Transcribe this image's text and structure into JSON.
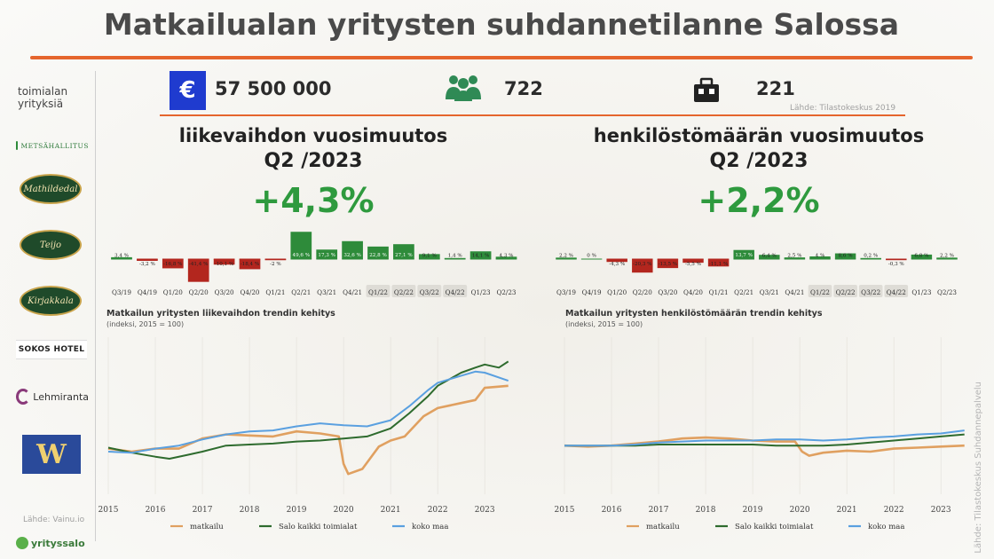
{
  "header": {
    "title": "Matkailualan yritysten suhdannetilanne Salossa"
  },
  "sidebar": {
    "label": "toimialan yrityksiä",
    "logos": [
      "METSÄHALLITUS",
      "Mathildedal",
      "Teijo",
      "Kirjakkala",
      "SOKOS HOTEL",
      "Lehmiranta",
      "W"
    ],
    "source": "Lähde: Vainu.io",
    "footer_logo": "yrityssalo"
  },
  "stats": {
    "euro_symbol": "€",
    "revenue": "57 500 000",
    "employees": "722",
    "companies": "221",
    "source": "Lähde: Tilastokeskus 2019"
  },
  "left_panel": {
    "heading": "liikevaihdon vuosimuutos",
    "period": "Q2 /2023",
    "big_value": "+4,3%",
    "trend_title": "Matkailun yritysten liikevaihdon trendin kehitys",
    "trend_subtitle": "(indeksi, 2015 = 100)"
  },
  "right_panel": {
    "heading": "henkilöstömäärän vuosimuutos",
    "period": "Q2 /2023",
    "big_value": "+2,2%",
    "trend_title": "Matkailun yritysten henkilöstömäärän trendin kehitys",
    "trend_subtitle": "(indeksi, 2015 = 100)"
  },
  "vertical_source": "Lähde: Tilastokeskus Suhdannepalvelu",
  "colors": {
    "accent": "#e5652d",
    "positive": "#2e8b3a",
    "negative": "#b3261e",
    "matkailu": "#e0a060",
    "salo": "#2e6b2e",
    "koko_maa": "#5aa0e0"
  },
  "chart_data": [
    {
      "type": "bar",
      "title": "liikevaihdon vuosimuutos",
      "categories": [
        "Q3/19",
        "Q4/19",
        "Q1/20",
        "Q2/20",
        "Q3/20",
        "Q4/20",
        "Q1/21",
        "Q2/21",
        "Q3/21",
        "Q4/21",
        "Q1/22",
        "Q2/22",
        "Q3/22",
        "Q4/22",
        "Q1/23",
        "Q2/23"
      ],
      "values": [
        3.4,
        -3.2,
        -16.8,
        -41.4,
        -10.1,
        -18.4,
        -2.0,
        49.6,
        17.3,
        32.6,
        22.8,
        27.1,
        9.1,
        1.4,
        14.1,
        4.3
      ],
      "labels": [
        "3,4 %",
        "-3,2 %",
        "-16,8 %",
        "-41,4 %",
        "-10,1 %",
        "-18,4 %",
        "-2 %",
        "49,6 %",
        "17,3 %",
        "32,6 %",
        "22,8 %",
        "27,1 %",
        "9,1 %",
        "1,4 %",
        "14,1 %",
        "4,3 %"
      ]
    },
    {
      "type": "bar",
      "title": "henkilöstömäärän vuosimuutos",
      "categories": [
        "Q3/19",
        "Q4/19",
        "Q1/20",
        "Q2/20",
        "Q3/20",
        "Q4/20",
        "Q1/21",
        "Q2/21",
        "Q3/21",
        "Q4/21",
        "Q1/22",
        "Q2/22",
        "Q3/22",
        "Q4/22",
        "Q1/23",
        "Q2/23"
      ],
      "values": [
        2.2,
        0,
        -4.3,
        -20.3,
        -13.5,
        -5.5,
        -11.1,
        13.7,
        6.4,
        2.5,
        4.0,
        8.6,
        0.2,
        -0.3,
        6.8,
        2.2
      ],
      "labels": [
        "2,2 %",
        "0 %",
        "-4,3 %",
        "-20,3 %",
        "-13,5 %",
        "-5,5 %",
        "-11,1 %",
        "13,7 %",
        "6,4 %",
        "2,5 %",
        "4 %",
        "8,6 %",
        "0,2 %",
        "-0,3 %",
        "6,8 %",
        "2,2 %"
      ]
    },
    {
      "type": "line",
      "title": "Matkailun yritysten liikevaihdon trendin kehitys",
      "subtitle": "(indeksi, 2015 = 100)",
      "x_ticks": [
        "2015",
        "2016",
        "2017",
        "2018",
        "2019",
        "2020",
        "2021",
        "2022",
        "2023"
      ],
      "xlim": [
        2015,
        2023.6
      ],
      "ylim": [
        55,
        210
      ],
      "series": [
        {
          "name": "matkailu",
          "points": [
            [
              2015,
              100
            ],
            [
              2015.5,
              97
            ],
            [
              2016,
              100
            ],
            [
              2016.5,
              100
            ],
            [
              2017,
              110
            ],
            [
              2017.5,
              114
            ],
            [
              2018,
              113
            ],
            [
              2018.5,
              112
            ],
            [
              2019,
              117
            ],
            [
              2019.5,
              115
            ],
            [
              2019.9,
              112
            ],
            [
              2020.0,
              85
            ],
            [
              2020.1,
              75
            ],
            [
              2020.4,
              80
            ],
            [
              2020.75,
              102
            ],
            [
              2021,
              108
            ],
            [
              2021.3,
              112
            ],
            [
              2021.7,
              132
            ],
            [
              2022,
              140
            ],
            [
              2022.5,
              145
            ],
            [
              2022.8,
              148
            ],
            [
              2023,
              160
            ],
            [
              2023.5,
              162
            ]
          ]
        },
        {
          "name": "Salo kaikki toimialat",
          "points": [
            [
              2015,
              101
            ],
            [
              2015.5,
              96
            ],
            [
              2016,
              92
            ],
            [
              2016.3,
              90
            ],
            [
              2016.7,
              94
            ],
            [
              2017,
              97
            ],
            [
              2017.5,
              103
            ],
            [
              2018,
              104
            ],
            [
              2018.5,
              105
            ],
            [
              2019,
              107
            ],
            [
              2019.5,
              108
            ],
            [
              2020,
              110
            ],
            [
              2020.5,
              112
            ],
            [
              2021,
              120
            ],
            [
              2021.4,
              135
            ],
            [
              2021.8,
              152
            ],
            [
              2022,
              162
            ],
            [
              2022.5,
              175
            ],
            [
              2022.8,
              180
            ],
            [
              2023,
              183
            ],
            [
              2023.3,
              180
            ],
            [
              2023.5,
              186
            ]
          ]
        },
        {
          "name": "koko maa",
          "points": [
            [
              2015,
              97
            ],
            [
              2015.5,
              96
            ],
            [
              2016,
              100
            ],
            [
              2016.5,
              103
            ],
            [
              2017,
              109
            ],
            [
              2017.5,
              114
            ],
            [
              2018,
              117
            ],
            [
              2018.5,
              118
            ],
            [
              2019,
              122
            ],
            [
              2019.5,
              125
            ],
            [
              2020,
              123
            ],
            [
              2020.5,
              122
            ],
            [
              2021,
              128
            ],
            [
              2021.4,
              142
            ],
            [
              2021.8,
              158
            ],
            [
              2022,
              165
            ],
            [
              2022.5,
              172
            ],
            [
              2022.8,
              176
            ],
            [
              2023,
              175
            ],
            [
              2023.5,
              167
            ]
          ]
        }
      ]
    },
    {
      "type": "line",
      "title": "Matkailun yritysten henkilöstömäärän trendin kehitys",
      "subtitle": "(indeksi, 2015 = 100)",
      "x_ticks": [
        "2015",
        "2016",
        "2017",
        "2018",
        "2019",
        "2020",
        "2021",
        "2022",
        "2023"
      ],
      "xlim": [
        2015,
        2023.6
      ],
      "ylim": [
        55,
        210
      ],
      "series": [
        {
          "name": "matkailu",
          "points": [
            [
              2015,
              103
            ],
            [
              2015.5,
              102
            ],
            [
              2016,
              103
            ],
            [
              2016.5,
              105
            ],
            [
              2017,
              107
            ],
            [
              2017.5,
              110
            ],
            [
              2018,
              111
            ],
            [
              2018.5,
              110
            ],
            [
              2019,
              108
            ],
            [
              2019.5,
              107
            ],
            [
              2019.9,
              107
            ],
            [
              2020.05,
              97
            ],
            [
              2020.2,
              93
            ],
            [
              2020.5,
              96
            ],
            [
              2021,
              98
            ],
            [
              2021.5,
              97
            ],
            [
              2022,
              100
            ],
            [
              2022.5,
              101
            ],
            [
              2023,
              102
            ],
            [
              2023.5,
              103
            ]
          ]
        },
        {
          "name": "Salo kaikki toimialat",
          "points": [
            [
              2015,
              103
            ],
            [
              2015.5,
              103
            ],
            [
              2016,
              103
            ],
            [
              2016.5,
              103
            ],
            [
              2017,
              104
            ],
            [
              2017.5,
              104
            ],
            [
              2018,
              104
            ],
            [
              2018.5,
              104
            ],
            [
              2019,
              104
            ],
            [
              2019.5,
              103
            ],
            [
              2020,
              103
            ],
            [
              2020.5,
              103
            ],
            [
              2021,
              104
            ],
            [
              2021.5,
              106
            ],
            [
              2022,
              108
            ],
            [
              2022.5,
              110
            ],
            [
              2023,
              112
            ],
            [
              2023.5,
              114
            ]
          ]
        },
        {
          "name": "koko maa",
          "points": [
            [
              2015,
              103
            ],
            [
              2015.5,
              103
            ],
            [
              2016,
              103
            ],
            [
              2016.5,
              104
            ],
            [
              2017,
              106
            ],
            [
              2017.5,
              107
            ],
            [
              2018,
              108
            ],
            [
              2018.5,
              108
            ],
            [
              2019,
              108
            ],
            [
              2019.5,
              109
            ],
            [
              2020,
              109
            ],
            [
              2020.5,
              108
            ],
            [
              2021,
              109
            ],
            [
              2021.5,
              111
            ],
            [
              2022,
              112
            ],
            [
              2022.5,
              114
            ],
            [
              2023,
              115
            ],
            [
              2023.5,
              118
            ]
          ]
        }
      ]
    }
  ]
}
